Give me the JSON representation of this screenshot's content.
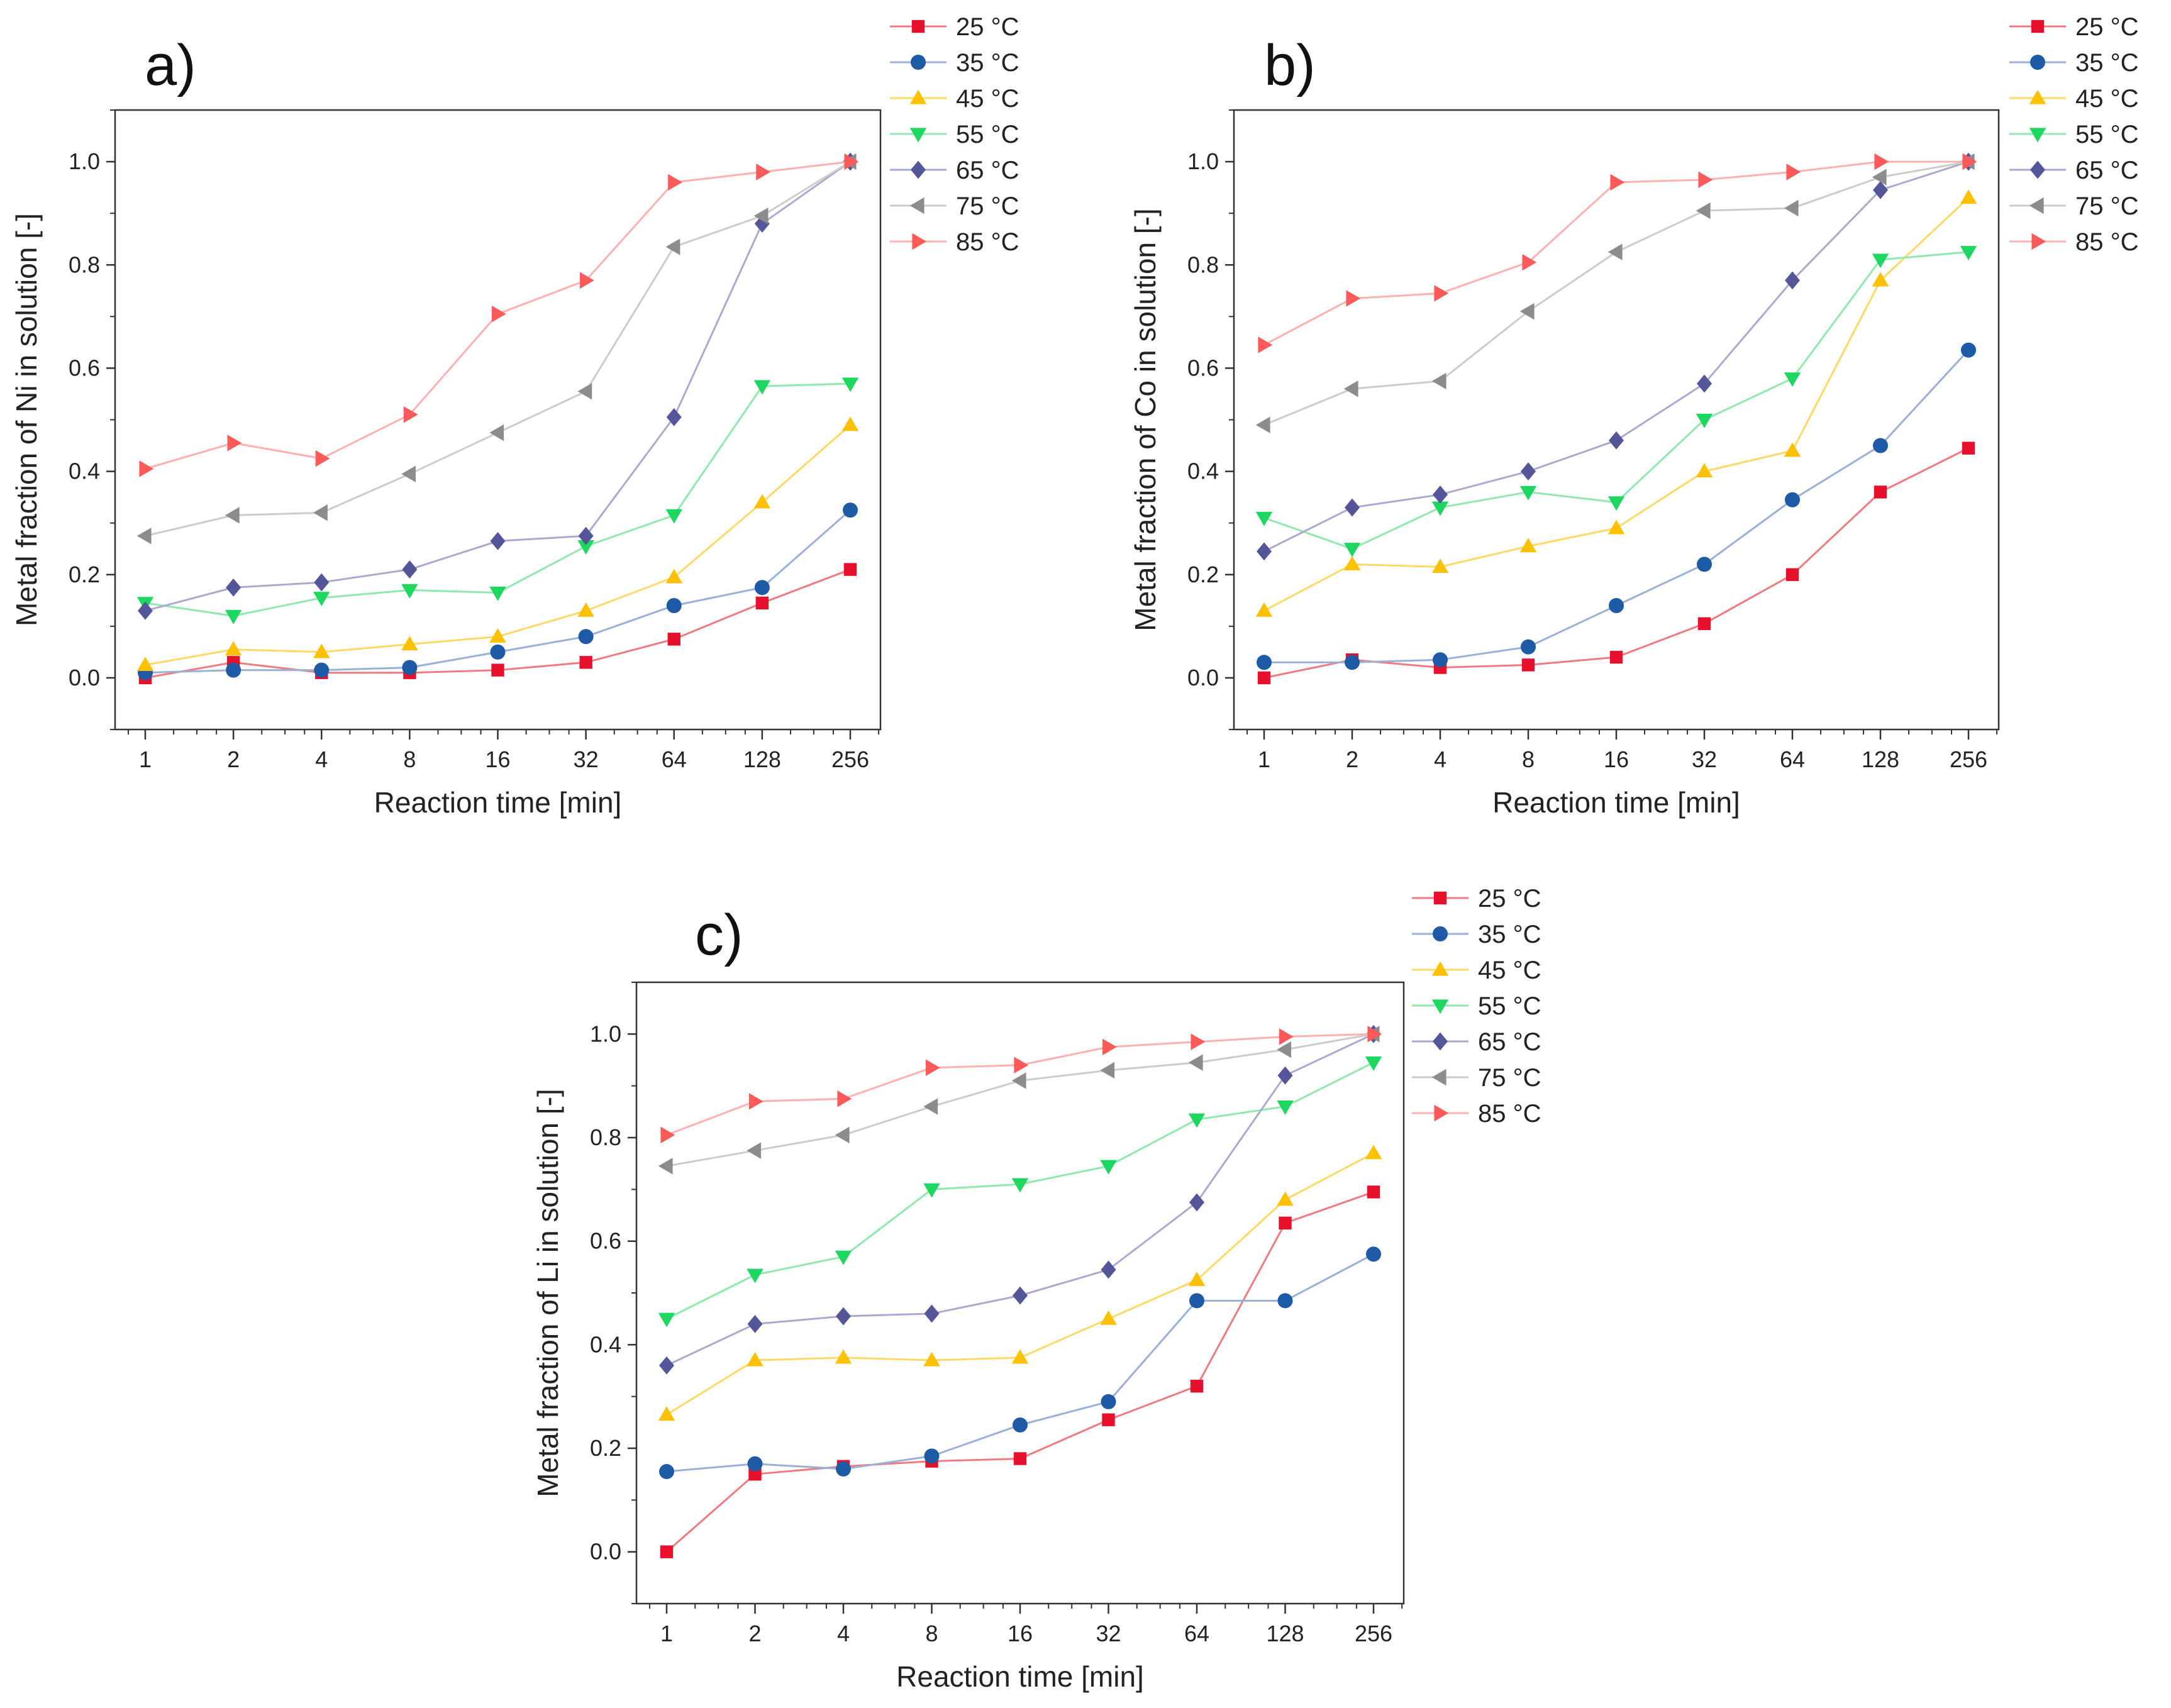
{
  "chart_data": [
    {
      "type": "line",
      "panel_label": "a)",
      "xlabel": "Reaction time [min]",
      "ylabel": "Metal fraction of Ni in solution [-]",
      "x_scale": "log2",
      "x": [
        1,
        2,
        4,
        8,
        16,
        32,
        64,
        128,
        256
      ],
      "x_tick_labels": [
        "1",
        "2",
        "4",
        "8",
        "16",
        "32",
        "64",
        "128",
        "256"
      ],
      "ylim": [
        -0.1,
        1.1
      ],
      "y_ticks": [
        0.0,
        0.2,
        0.4,
        0.6,
        0.8,
        1.0
      ],
      "y_tick_labels": [
        "0.0",
        "0.2",
        "0.4",
        "0.6",
        "0.8",
        "1.0"
      ],
      "legend_position": "top-right-outside",
      "series": [
        {
          "name": "25 °C",
          "values": [
            0.0,
            0.03,
            0.01,
            0.01,
            0.015,
            0.03,
            0.075,
            0.145,
            0.21
          ]
        },
        {
          "name": "35 °C",
          "values": [
            0.01,
            0.015,
            0.015,
            0.02,
            0.05,
            0.08,
            0.14,
            0.175,
            0.325
          ]
        },
        {
          "name": "45 °C",
          "values": [
            0.025,
            0.055,
            0.05,
            0.065,
            0.08,
            0.13,
            0.195,
            0.34,
            0.49
          ]
        },
        {
          "name": "55 °C",
          "values": [
            0.145,
            0.12,
            0.155,
            0.17,
            0.165,
            0.255,
            0.315,
            0.565,
            0.57
          ]
        },
        {
          "name": "65 °C",
          "values": [
            0.13,
            0.175,
            0.185,
            0.21,
            0.265,
            0.275,
            0.505,
            0.88,
            1.0
          ]
        },
        {
          "name": "75 °C",
          "values": [
            0.275,
            0.315,
            0.32,
            0.395,
            0.475,
            0.555,
            0.835,
            0.895,
            1.0
          ]
        },
        {
          "name": "85 °C",
          "values": [
            0.405,
            0.455,
            0.425,
            0.51,
            0.705,
            0.77,
            0.96,
            0.98,
            1.0
          ]
        }
      ]
    },
    {
      "type": "line",
      "panel_label": "b)",
      "xlabel": "Reaction time [min]",
      "ylabel": "Metal fraction of Co in solution [-]",
      "x_scale": "log2",
      "x": [
        1,
        2,
        4,
        8,
        16,
        32,
        64,
        128,
        256
      ],
      "x_tick_labels": [
        "1",
        "2",
        "4",
        "8",
        "16",
        "32",
        "64",
        "128",
        "256"
      ],
      "ylim": [
        -0.1,
        1.1
      ],
      "y_ticks": [
        0.0,
        0.2,
        0.4,
        0.6,
        0.8,
        1.0
      ],
      "y_tick_labels": [
        "0.0",
        "0.2",
        "0.4",
        "0.6",
        "0.8",
        "1.0"
      ],
      "legend_position": "top-right-outside",
      "series": [
        {
          "name": "25 °C",
          "values": [
            0.0,
            0.035,
            0.02,
            0.025,
            0.04,
            0.105,
            0.2,
            0.36,
            0.445
          ]
        },
        {
          "name": "35 °C",
          "values": [
            0.03,
            0.03,
            0.035,
            0.06,
            0.14,
            0.22,
            0.345,
            0.45,
            0.635
          ]
        },
        {
          "name": "45 °C",
          "values": [
            0.13,
            0.22,
            0.215,
            0.255,
            0.29,
            0.4,
            0.44,
            0.77,
            0.93
          ]
        },
        {
          "name": "55 °C",
          "values": [
            0.31,
            0.25,
            0.33,
            0.36,
            0.34,
            0.5,
            0.58,
            0.81,
            0.825
          ]
        },
        {
          "name": "65 °C",
          "values": [
            0.245,
            0.33,
            0.355,
            0.4,
            0.46,
            0.57,
            0.77,
            0.945,
            1.0
          ]
        },
        {
          "name": "75 °C",
          "values": [
            0.49,
            0.56,
            0.575,
            0.71,
            0.825,
            0.905,
            0.91,
            0.97,
            1.0
          ]
        },
        {
          "name": "85 °C",
          "values": [
            0.645,
            0.735,
            0.745,
            0.805,
            0.96,
            0.965,
            0.98,
            1.0,
            1.0
          ]
        }
      ]
    },
    {
      "type": "line",
      "panel_label": "c)",
      "xlabel": "Reaction time [min]",
      "ylabel": "Metal fraction of Li in solution [-]",
      "x_scale": "log2",
      "x": [
        1,
        2,
        4,
        8,
        16,
        32,
        64,
        128,
        256
      ],
      "x_tick_labels": [
        "1",
        "2",
        "4",
        "8",
        "16",
        "32",
        "64",
        "128",
        "256"
      ],
      "ylim": [
        -0.1,
        1.1
      ],
      "y_ticks": [
        0.0,
        0.2,
        0.4,
        0.6,
        0.8,
        1.0
      ],
      "y_tick_labels": [
        "0.0",
        "0.2",
        "0.4",
        "0.6",
        "0.8",
        "1.0"
      ],
      "legend_position": "top-right-outside",
      "series": [
        {
          "name": "25 °C",
          "values": [
            0.0,
            0.15,
            0.165,
            0.175,
            0.18,
            0.255,
            0.32,
            0.635,
            0.695
          ]
        },
        {
          "name": "35 °C",
          "values": [
            0.155,
            0.17,
            0.16,
            0.185,
            0.245,
            0.29,
            0.485,
            0.485,
            0.575
          ]
        },
        {
          "name": "45 °C",
          "values": [
            0.265,
            0.37,
            0.375,
            0.37,
            0.375,
            0.45,
            0.525,
            0.68,
            0.77
          ]
        },
        {
          "name": "55 °C",
          "values": [
            0.45,
            0.535,
            0.57,
            0.7,
            0.71,
            0.745,
            0.835,
            0.86,
            0.945
          ]
        },
        {
          "name": "65 °C",
          "values": [
            0.36,
            0.44,
            0.455,
            0.46,
            0.495,
            0.545,
            0.675,
            0.92,
            1.0
          ]
        },
        {
          "name": "75 °C",
          "values": [
            0.745,
            0.775,
            0.805,
            0.86,
            0.91,
            0.93,
            0.945,
            0.97,
            1.0
          ]
        },
        {
          "name": "85 °C",
          "values": [
            0.805,
            0.87,
            0.875,
            0.935,
            0.94,
            0.975,
            0.985,
            0.995,
            1.0
          ]
        }
      ]
    }
  ],
  "styles": {
    "series": [
      {
        "marker_color": "#e8112d",
        "line_color": "#f07a7f",
        "marker": "square"
      },
      {
        "marker_color": "#1f5aa6",
        "line_color": "#9ab0d6",
        "marker": "circle"
      },
      {
        "marker_color": "#ffc000",
        "line_color": "#ffd966",
        "marker": "triangle-up"
      },
      {
        "marker_color": "#1ed760",
        "line_color": "#8fe8ad",
        "marker": "triangle-down"
      },
      {
        "marker_color": "#55559a",
        "line_color": "#aaaad0",
        "marker": "diamond"
      },
      {
        "marker_color": "#8c8c8c",
        "line_color": "#cccccc",
        "marker": "triangle-left"
      },
      {
        "marker_color": "#ff5a5a",
        "line_color": "#ffb0b0",
        "marker": "triangle-right"
      }
    ]
  }
}
